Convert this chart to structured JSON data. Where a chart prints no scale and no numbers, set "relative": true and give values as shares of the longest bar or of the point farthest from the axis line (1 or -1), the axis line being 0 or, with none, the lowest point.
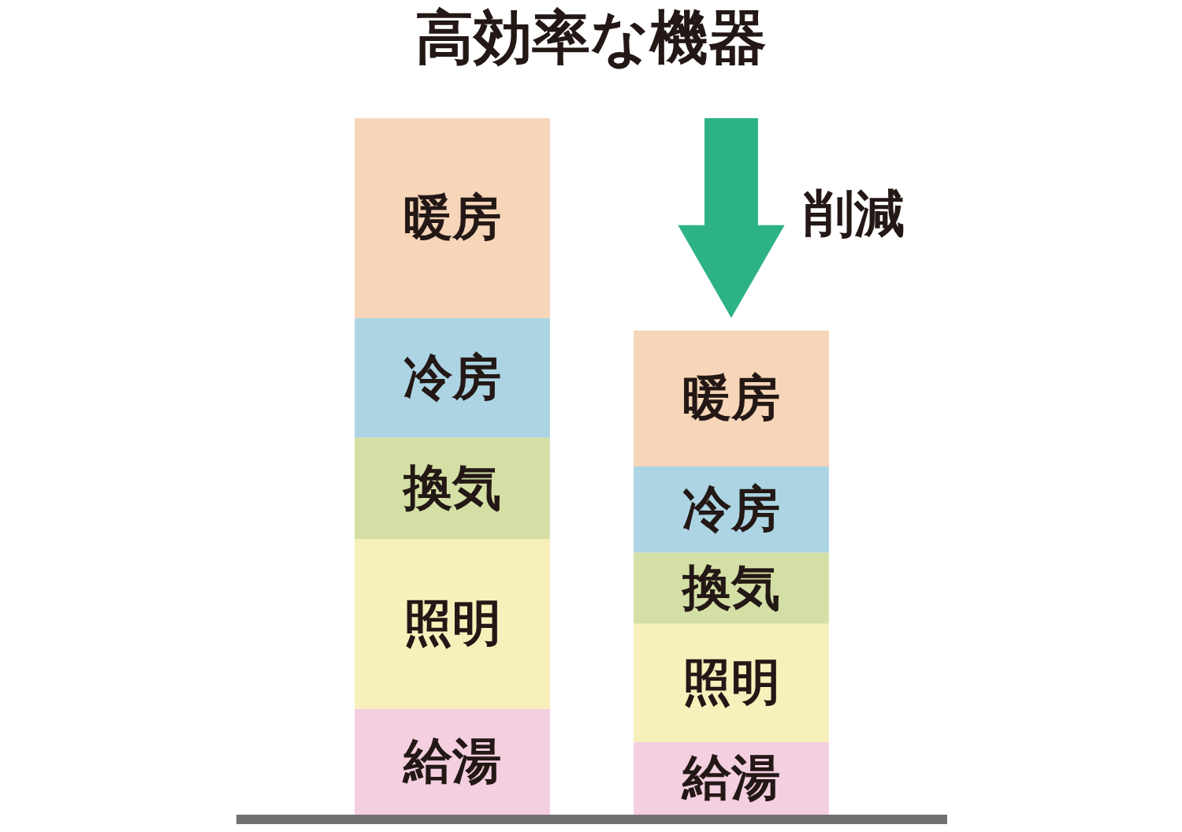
{
  "chart_data": {
    "type": "bar",
    "title": "高効率な機器",
    "relative": true,
    "stacked": true,
    "categories": [
      null,
      null
    ],
    "series": [
      {
        "name": "給湯",
        "color": "#f3cfe0",
        "values": [
          0.152,
          0.104
        ]
      },
      {
        "name": "照明",
        "color": "#f7f0bb",
        "values": [
          0.244,
          0.17
        ]
      },
      {
        "name": "換気",
        "color": "#d4dfa5",
        "values": [
          0.145,
          0.102
        ]
      },
      {
        "name": "冷房",
        "color": "#acd4e2",
        "values": [
          0.172,
          0.124
        ]
      },
      {
        "name": "暖房",
        "color": "#f6d5b8",
        "values": [
          0.287,
          0.195
        ]
      }
    ],
    "annotations": [
      "削減"
    ]
  }
}
